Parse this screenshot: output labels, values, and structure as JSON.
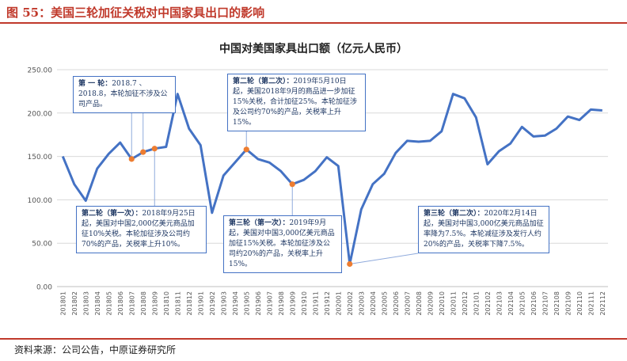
{
  "figure": {
    "header": "图 55：美国三轮加征关税对中国家具出口的影响",
    "source": "资料来源：公司公告，中原证券研究所"
  },
  "chart_data": {
    "type": "line",
    "title": "中国对美国家具出口额（亿元人民币）",
    "categories": [
      "201801",
      "201802",
      "201803",
      "201804",
      "201805",
      "201806",
      "201807",
      "201808",
      "201809",
      "201810",
      "201811",
      "201812",
      "201901",
      "201902",
      "201903",
      "201904",
      "201905",
      "201906",
      "201907",
      "201908",
      "201909",
      "201910",
      "201911",
      "201912",
      "202001",
      "202002",
      "202003",
      "202004",
      "202005",
      "202006",
      "202007",
      "202008",
      "202009",
      "202010",
      "202011",
      "202012",
      "202101",
      "202102",
      "202103",
      "202104",
      "202105",
      "202106",
      "202107",
      "202108",
      "202109",
      "202110",
      "202111",
      "202112"
    ],
    "series": [
      {
        "values": [
          150,
          118,
          99,
          136,
          153,
          166,
          147,
          155,
          159,
          161,
          222,
          182,
          163,
          85,
          128,
          143,
          158,
          147,
          143,
          133,
          118,
          123,
          133,
          149,
          139,
          26,
          89,
          118,
          130,
          154,
          168,
          167,
          168,
          179,
          222,
          217,
          195,
          141,
          156,
          165,
          184,
          173,
          174,
          182,
          196,
          192,
          204,
          203
        ],
        "color": "#4472c4",
        "highlight_color": "#ed7d31",
        "highlight_indices": [
          6,
          7,
          8,
          16,
          20,
          25
        ]
      }
    ],
    "yticks": [
      "0.00",
      "50.00",
      "100.00",
      "150.00",
      "200.00",
      "250.00"
    ],
    "ylim": [
      0,
      250
    ],
    "grid": true,
    "annotations": [
      {
        "title": "第 一 轮：",
        "text": "2018.7 、2018.8，本轮加征不涉及公司产品。"
      },
      {
        "title": "第二轮（第一次）：",
        "text": "2018年9月25日起，美国对中国2,000亿美元商品加征10%关税。本轮加征涉及公司约70%的产品，关税率上升10%。"
      },
      {
        "title": "第二轮（第二次）：",
        "text": "2019年5月10日起，美国2018年9月的商品进一步加征15%关税，合计加征25%。本轮加征涉及公司约70%的产品，关税率上升15%。"
      },
      {
        "title": "第三轮（第一次）：",
        "text": "2019年9月起，美国对中国3,000亿美元商品加征15%关税。本轮加征涉及公司约20%的产品，关税率上升15%。"
      },
      {
        "title": "第三轮（第二次）：",
        "text": "2020年2月14日起，美国对中国3,000亿美元商品加征率降为7.5%。本轮减征涉及发行人约20%的产品，关税率下降7.5%。"
      }
    ]
  }
}
